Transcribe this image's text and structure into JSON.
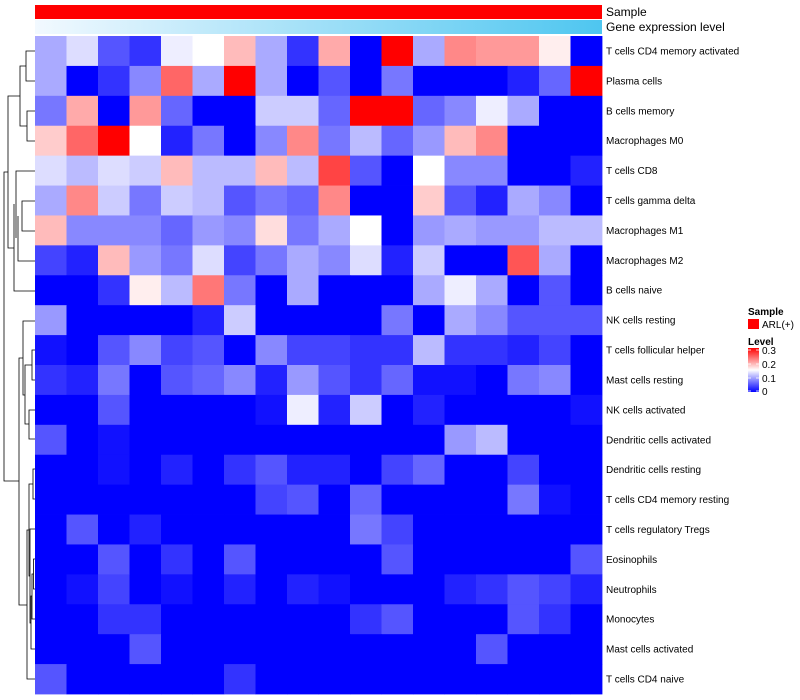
{
  "chart_data": {
    "type": "heatmap",
    "annotation_rows": [
      {
        "label": "Sample",
        "color": "#ff0000"
      },
      {
        "label": "Gene expression level",
        "gradient": [
          "#f2f9ff",
          "#4ec6f0"
        ]
      }
    ],
    "n_columns": 18,
    "rows": [
      "T cells CD4 memory activated",
      "Plasma cells",
      "B cells memory",
      "Macrophages M0",
      "T cells CD8",
      "T cells gamma delta",
      "Macrophages M1",
      "Macrophages M2",
      "B cells naive",
      "NK cells resting",
      "T cells follicular helper",
      "Mast cells resting",
      "NK cells activated",
      "Dendritic cells activated",
      "Dendritic cells resting",
      "T cells CD4 memory resting",
      "T cells regulatory  Tregs",
      "Eosinophils",
      "Neutrophils",
      "Monocytes",
      "Mast cells activated",
      "T cells CD4 naive"
    ],
    "values": [
      [
        0.1,
        0.13,
        0.05,
        0.03,
        0.14,
        0.15,
        0.19,
        0.1,
        0.03,
        0.2,
        0.0,
        0.3,
        0.1,
        0.22,
        0.21,
        0.21,
        0.16,
        0.0
      ],
      [
        0.1,
        0.0,
        0.03,
        0.08,
        0.24,
        0.1,
        0.3,
        0.1,
        0.0,
        0.05,
        0.0,
        0.07,
        0.0,
        0.0,
        0.0,
        0.02,
        0.06,
        0.3
      ],
      [
        0.07,
        0.2,
        0.0,
        0.21,
        0.06,
        0.0,
        0.0,
        0.12,
        0.12,
        0.06,
        0.3,
        0.3,
        0.06,
        0.08,
        0.14,
        0.1,
        0.0,
        0.0
      ],
      [
        0.18,
        0.24,
        0.3,
        0.15,
        0.02,
        0.07,
        0.0,
        0.08,
        0.22,
        0.07,
        0.11,
        0.06,
        0.09,
        0.19,
        0.22,
        0.0,
        0.0,
        0.0
      ],
      [
        0.13,
        0.11,
        0.13,
        0.12,
        0.19,
        0.11,
        0.11,
        0.19,
        0.11,
        0.26,
        0.05,
        0.0,
        0.15,
        0.08,
        0.08,
        0.0,
        0.0,
        0.02
      ],
      [
        0.1,
        0.22,
        0.12,
        0.07,
        0.12,
        0.11,
        0.05,
        0.07,
        0.06,
        0.22,
        0.0,
        0.0,
        0.18,
        0.05,
        0.02,
        0.1,
        0.08,
        0.0
      ],
      [
        0.19,
        0.08,
        0.08,
        0.08,
        0.06,
        0.09,
        0.08,
        0.17,
        0.07,
        0.1,
        0.15,
        0.0,
        0.09,
        0.1,
        0.09,
        0.09,
        0.11,
        0.11
      ],
      [
        0.04,
        0.02,
        0.19,
        0.09,
        0.07,
        0.13,
        0.04,
        0.07,
        0.1,
        0.08,
        0.13,
        0.02,
        0.12,
        0.0,
        0.0,
        0.25,
        0.1,
        0.0
      ],
      [
        0.0,
        0.0,
        0.03,
        0.16,
        0.11,
        0.23,
        0.07,
        0.0,
        0.1,
        0.0,
        0.0,
        0.0,
        0.1,
        0.14,
        0.1,
        0.0,
        0.05,
        0.0
      ],
      [
        0.09,
        0.0,
        0.0,
        0.0,
        0.0,
        0.02,
        0.12,
        0.0,
        0.0,
        0.0,
        0.0,
        0.07,
        0.0,
        0.1,
        0.08,
        0.05,
        0.05,
        0.05
      ],
      [
        0.01,
        0.0,
        0.05,
        0.08,
        0.04,
        0.05,
        0.0,
        0.08,
        0.04,
        0.04,
        0.03,
        0.03,
        0.11,
        0.03,
        0.03,
        0.02,
        0.04,
        0.0
      ],
      [
        0.03,
        0.02,
        0.07,
        0.0,
        0.05,
        0.06,
        0.08,
        0.02,
        0.09,
        0.05,
        0.03,
        0.06,
        0.01,
        0.01,
        0.0,
        0.07,
        0.08,
        0.0
      ],
      [
        0.0,
        0.0,
        0.05,
        0.0,
        0.0,
        0.0,
        0.0,
        0.01,
        0.14,
        0.02,
        0.12,
        0.0,
        0.02,
        0.0,
        0.0,
        0.0,
        0.0,
        0.01
      ],
      [
        0.05,
        0.0,
        0.01,
        0.0,
        0.0,
        0.0,
        0.0,
        0.0,
        0.0,
        0.0,
        0.0,
        0.0,
        0.0,
        0.09,
        0.11,
        0.0,
        0.0,
        0.0
      ],
      [
        0.0,
        0.0,
        0.01,
        0.0,
        0.02,
        0.0,
        0.03,
        0.05,
        0.02,
        0.02,
        0.0,
        0.04,
        0.06,
        0.0,
        0.0,
        0.04,
        0.0,
        0.0
      ],
      [
        0.0,
        0.0,
        0.0,
        0.0,
        0.0,
        0.0,
        0.0,
        0.04,
        0.05,
        0.0,
        0.06,
        0.0,
        0.0,
        0.0,
        0.0,
        0.07,
        0.01,
        0.0
      ],
      [
        0.0,
        0.05,
        0.0,
        0.02,
        0.0,
        0.0,
        0.0,
        0.0,
        0.0,
        0.0,
        0.07,
        0.04,
        0.0,
        0.0,
        0.0,
        0.0,
        0.0,
        0.0
      ],
      [
        0.0,
        0.0,
        0.05,
        0.0,
        0.03,
        0.0,
        0.05,
        0.0,
        0.0,
        0.0,
        0.0,
        0.05,
        0.0,
        0.0,
        0.0,
        0.0,
        0.0,
        0.05
      ],
      [
        0.0,
        0.01,
        0.04,
        0.0,
        0.01,
        0.0,
        0.02,
        0.0,
        0.02,
        0.01,
        0.0,
        0.0,
        0.0,
        0.02,
        0.03,
        0.05,
        0.04,
        0.02
      ],
      [
        0.0,
        0.0,
        0.03,
        0.03,
        0.0,
        0.0,
        0.0,
        0.0,
        0.0,
        0.0,
        0.03,
        0.05,
        0.0,
        0.0,
        0.0,
        0.05,
        0.03,
        0.0
      ],
      [
        0.0,
        0.0,
        0.0,
        0.05,
        0.0,
        0.0,
        0.0,
        0.0,
        0.0,
        0.0,
        0.0,
        0.0,
        0.0,
        0.0,
        0.05,
        0.0,
        0.0,
        0.0
      ],
      [
        0.05,
        0.0,
        0.0,
        0.0,
        0.0,
        0.0,
        0.03,
        0.0,
        0.0,
        0.0,
        0.0,
        0.0,
        0.0,
        0.0,
        0.0,
        0.0,
        0.0,
        0.0
      ]
    ],
    "color_scale": {
      "min": 0,
      "mid": 0.15,
      "max": 0.3,
      "colors": [
        "#0000ff",
        "#ffffff",
        "#ff0000"
      ]
    },
    "legends": {
      "sample": {
        "title": "Sample",
        "entries": [
          {
            "label": "ARL(+)",
            "color": "#ff0000"
          }
        ]
      },
      "level": {
        "title": "Level",
        "ticks": [
          0.3,
          0.2,
          0.1,
          0
        ],
        "tick_labels": [
          "0.3",
          "0.2",
          "0.1",
          "0"
        ]
      }
    },
    "row_dendrogram": true
  }
}
